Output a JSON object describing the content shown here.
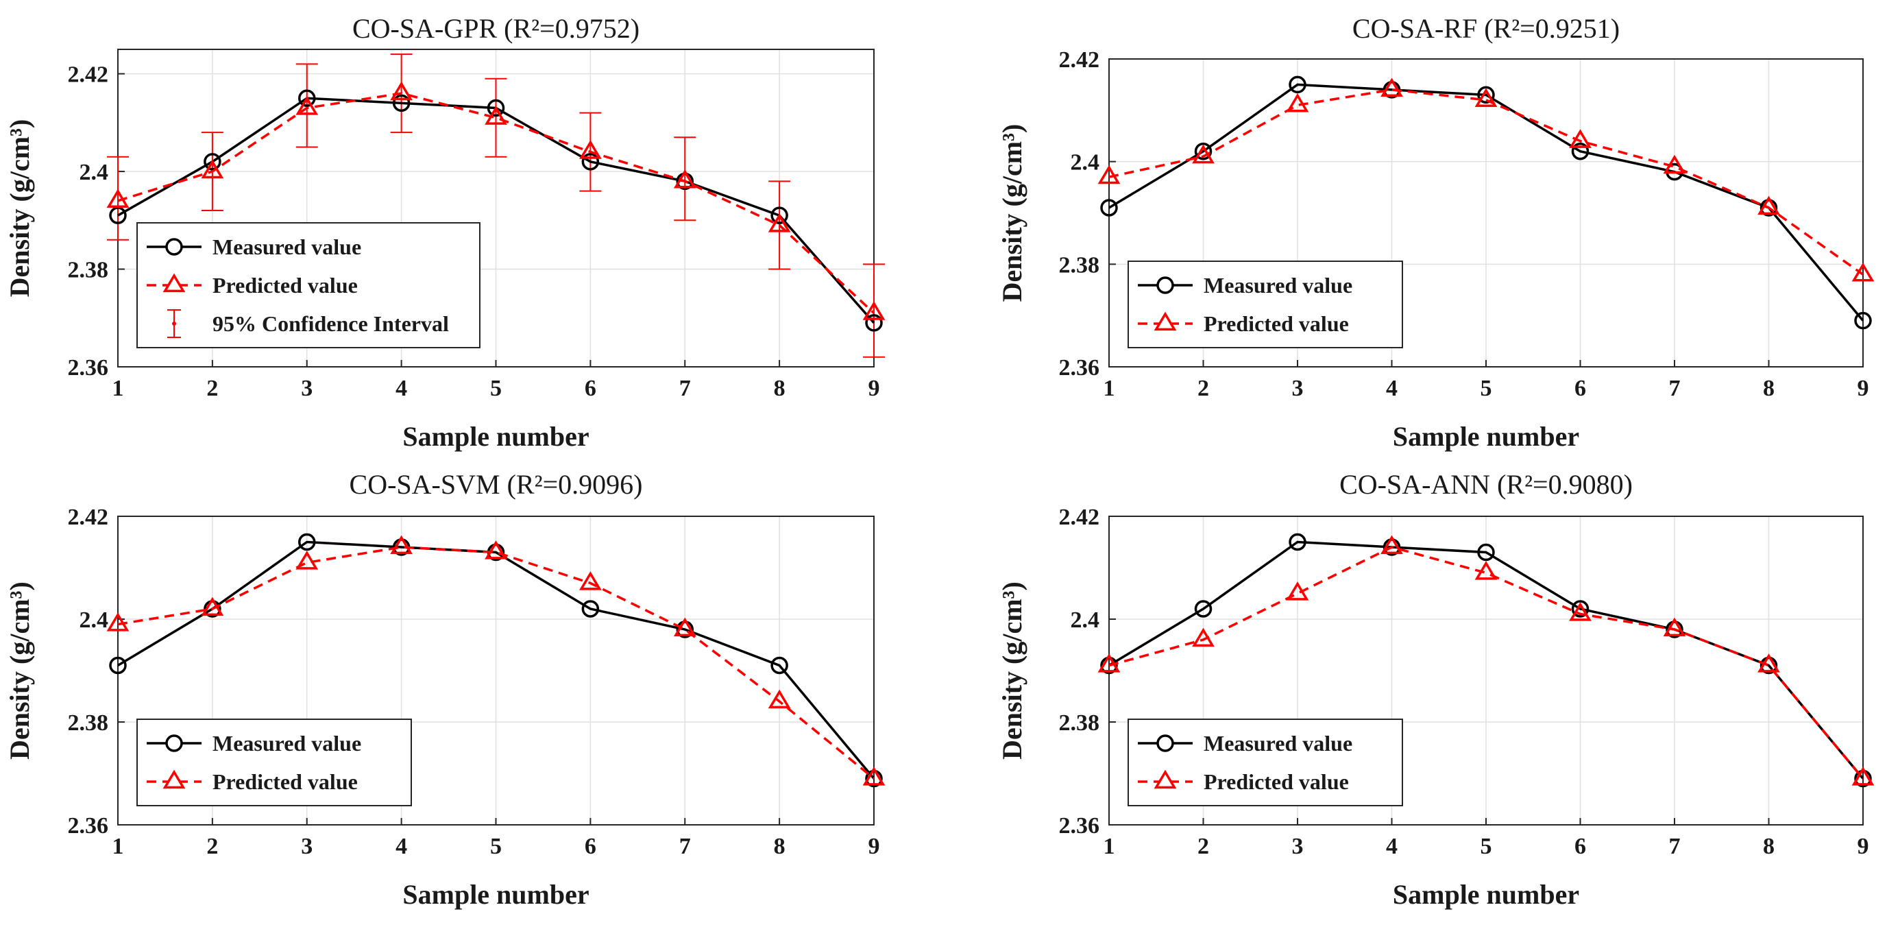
{
  "colors": {
    "measured": "#000000",
    "predicted": "#ff0000",
    "grid": "#e0e0e0",
    "axis": "#262626"
  },
  "chart_data": [
    {
      "type": "line",
      "title": "CO-SA-GPR (R²=0.9752)",
      "xlabel": "Sample number",
      "ylabel": "Density (g/cm³)",
      "x": [
        1,
        2,
        3,
        4,
        5,
        6,
        7,
        8,
        9
      ],
      "xlim": [
        1,
        9
      ],
      "ylim": [
        2.36,
        2.425
      ],
      "yticks": [
        2.36,
        2.38,
        2.4,
        2.42
      ],
      "ytick_labels": [
        "2.36",
        "2.38",
        "2.4",
        "2.42"
      ],
      "xtick_labels": [
        "1",
        "2",
        "3",
        "4",
        "5",
        "6",
        "7",
        "8",
        "9"
      ],
      "grid": true,
      "legend_position": "bottom-left",
      "series": [
        {
          "name": "Measured value",
          "style": "solid",
          "marker": "circle",
          "values": [
            2.391,
            2.402,
            2.415,
            2.414,
            2.413,
            2.402,
            2.398,
            2.391,
            2.369
          ]
        },
        {
          "name": "Predicted value",
          "style": "dashed",
          "marker": "triangle",
          "values": [
            2.394,
            2.4,
            2.413,
            2.416,
            2.411,
            2.404,
            2.398,
            2.389,
            2.371
          ]
        }
      ],
      "error_bars": {
        "name": "95% Confidence Interval",
        "lower": [
          2.386,
          2.392,
          2.405,
          2.408,
          2.403,
          2.396,
          2.39,
          2.38,
          2.362
        ],
        "upper": [
          2.403,
          2.408,
          2.422,
          2.424,
          2.419,
          2.412,
          2.407,
          2.398,
          2.381
        ]
      }
    },
    {
      "type": "line",
      "title": "CO-SA-RF (R²=0.9251)",
      "xlabel": "Sample number",
      "ylabel": "Density (g/cm³)",
      "x": [
        1,
        2,
        3,
        4,
        5,
        6,
        7,
        8,
        9
      ],
      "xlim": [
        1,
        9
      ],
      "ylim": [
        2.36,
        2.42
      ],
      "yticks": [
        2.36,
        2.38,
        2.4,
        2.42
      ],
      "ytick_labels": [
        "2.36",
        "2.38",
        "2.4",
        "2.42"
      ],
      "xtick_labels": [
        "1",
        "2",
        "3",
        "4",
        "5",
        "6",
        "7",
        "8",
        "9"
      ],
      "grid": true,
      "legend_position": "bottom-left",
      "series": [
        {
          "name": "Measured value",
          "style": "solid",
          "marker": "circle",
          "values": [
            2.391,
            2.402,
            2.415,
            2.414,
            2.413,
            2.402,
            2.398,
            2.391,
            2.369
          ]
        },
        {
          "name": "Predicted value",
          "style": "dashed",
          "marker": "triangle",
          "values": [
            2.397,
            2.401,
            2.411,
            2.414,
            2.412,
            2.404,
            2.399,
            2.391,
            2.378
          ]
        }
      ]
    },
    {
      "type": "line",
      "title": "CO-SA-SVM (R²=0.9096)",
      "xlabel": "Sample number",
      "ylabel": "Density (g/cm³)",
      "x": [
        1,
        2,
        3,
        4,
        5,
        6,
        7,
        8,
        9
      ],
      "xlim": [
        1,
        9
      ],
      "ylim": [
        2.36,
        2.42
      ],
      "yticks": [
        2.36,
        2.38,
        2.4,
        2.42
      ],
      "ytick_labels": [
        "2.36",
        "2.38",
        "2.4",
        "2.42"
      ],
      "xtick_labels": [
        "1",
        "2",
        "3",
        "4",
        "5",
        "6",
        "7",
        "8",
        "9"
      ],
      "grid": true,
      "legend_position": "bottom-left",
      "series": [
        {
          "name": "Measured value",
          "style": "solid",
          "marker": "circle",
          "values": [
            2.391,
            2.402,
            2.415,
            2.414,
            2.413,
            2.402,
            2.398,
            2.391,
            2.369
          ]
        },
        {
          "name": "Predicted value",
          "style": "dashed",
          "marker": "triangle",
          "values": [
            2.399,
            2.402,
            2.411,
            2.414,
            2.413,
            2.407,
            2.398,
            2.384,
            2.369
          ]
        }
      ]
    },
    {
      "type": "line",
      "title": "CO-SA-ANN (R²=0.9080)",
      "xlabel": "Sample number",
      "ylabel": "Density (g/cm³)",
      "x": [
        1,
        2,
        3,
        4,
        5,
        6,
        7,
        8,
        9
      ],
      "xlim": [
        1,
        9
      ],
      "ylim": [
        2.36,
        2.42
      ],
      "yticks": [
        2.36,
        2.38,
        2.4,
        2.42
      ],
      "ytick_labels": [
        "2.36",
        "2.38",
        "2.4",
        "2.42"
      ],
      "xtick_labels": [
        "1",
        "2",
        "3",
        "4",
        "5",
        "6",
        "7",
        "8",
        "9"
      ],
      "grid": true,
      "legend_position": "bottom-left",
      "series": [
        {
          "name": "Measured value",
          "style": "solid",
          "marker": "circle",
          "values": [
            2.391,
            2.402,
            2.415,
            2.414,
            2.413,
            2.402,
            2.398,
            2.391,
            2.369
          ]
        },
        {
          "name": "Predicted value",
          "style": "dashed",
          "marker": "triangle",
          "values": [
            2.391,
            2.396,
            2.405,
            2.414,
            2.409,
            2.401,
            2.398,
            2.391,
            2.369
          ]
        }
      ]
    }
  ]
}
